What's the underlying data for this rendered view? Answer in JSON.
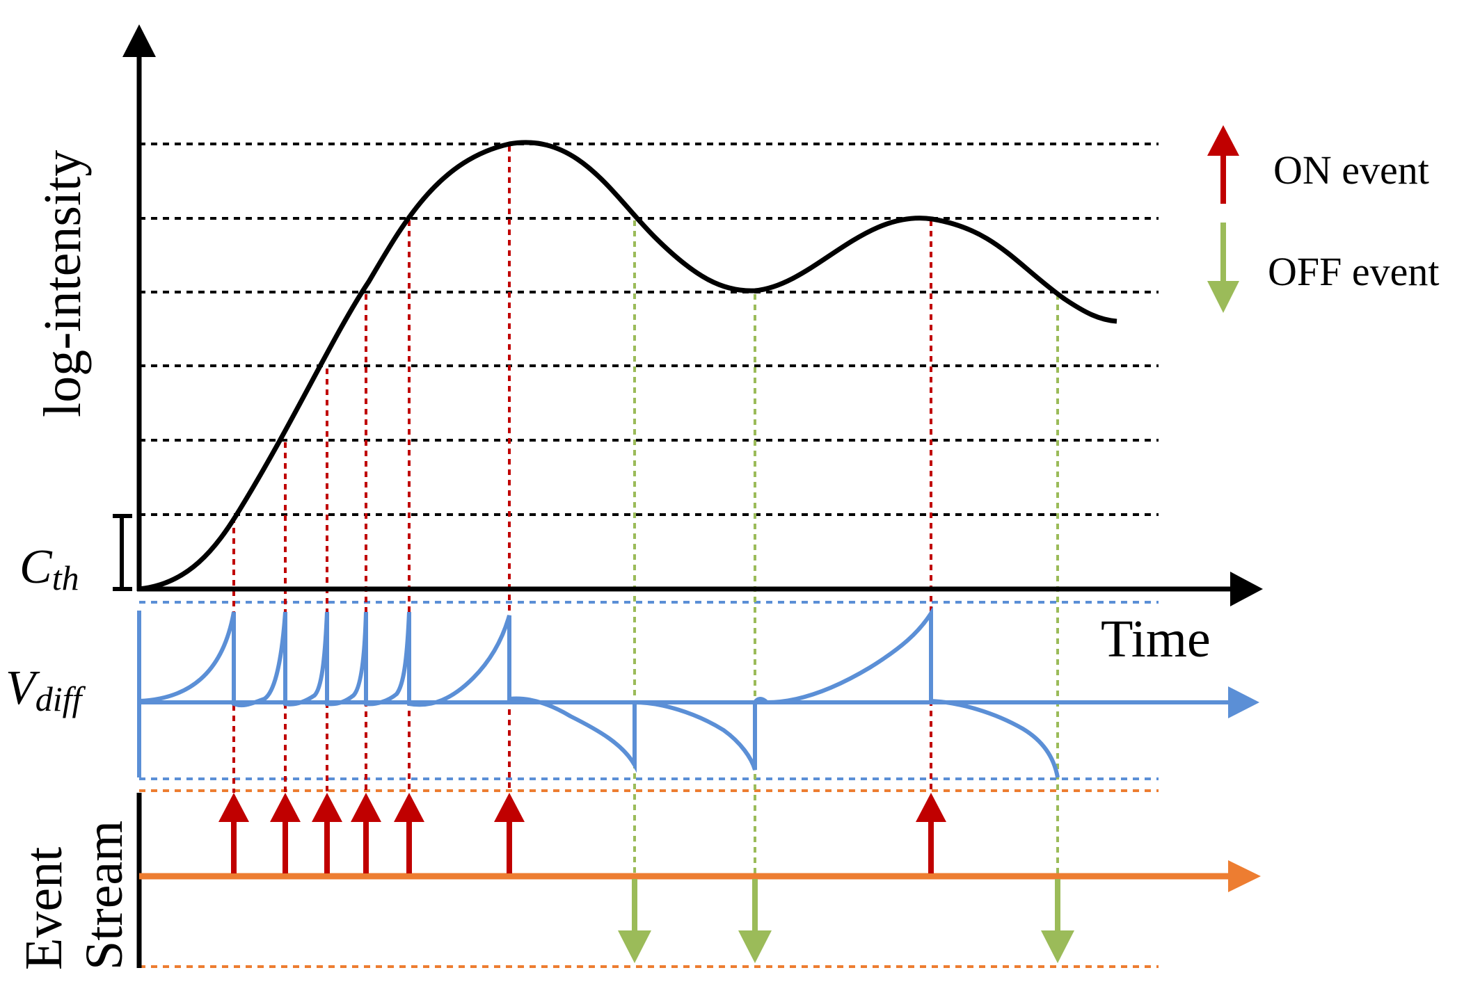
{
  "labels": {
    "y_axis": "log-intensity",
    "x_axis": "Time",
    "threshold_main": "C",
    "threshold_sub": "th",
    "vdiff_main": "V",
    "vdiff_sub": "diff",
    "event_line1": "Event",
    "event_line2": "Stream"
  },
  "legend": {
    "on_event": "ON event",
    "off_event": "OFF event"
  },
  "colors": {
    "axis": "#000000",
    "on_event": "#c00000",
    "off_event": "#9bbb59",
    "vdiff": "#5b8fd6",
    "event_stream": "#ed7d31",
    "grid": "#000000"
  }
}
